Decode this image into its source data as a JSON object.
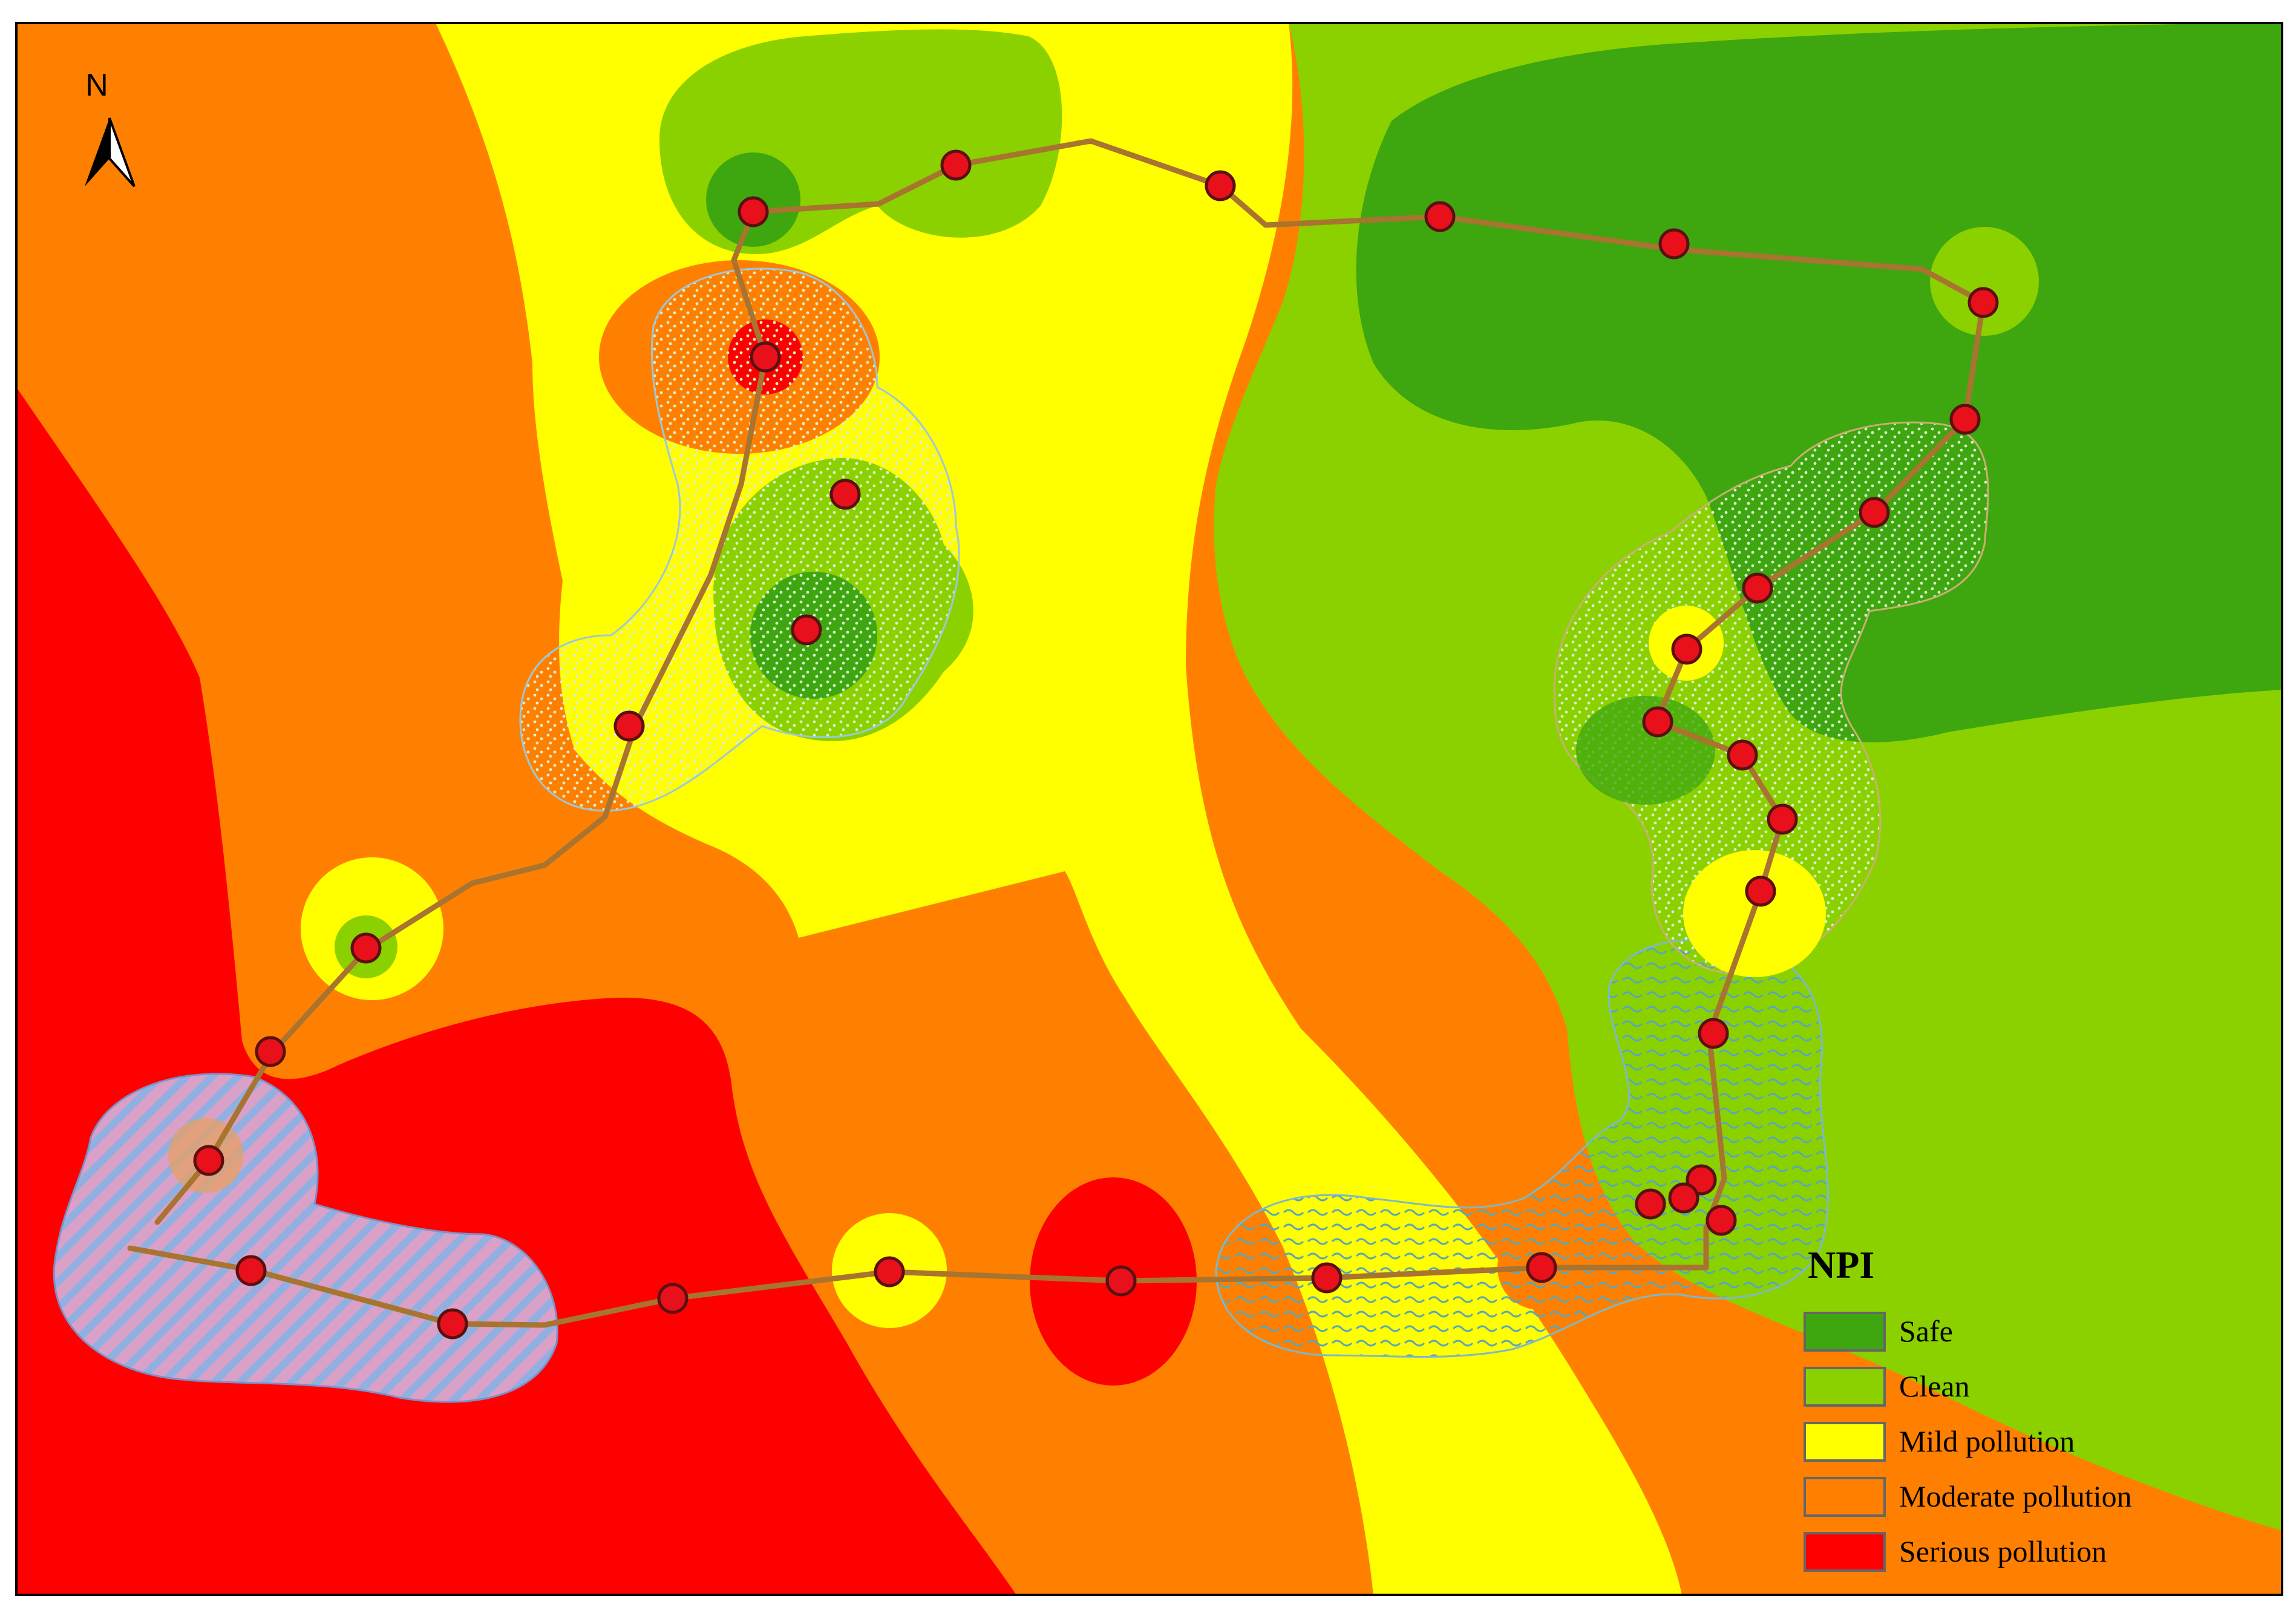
{
  "north_arrow": {
    "label": "N"
  },
  "legend": {
    "title": "NPI",
    "items": [
      {
        "label": "Safe",
        "color": "#3ea60f"
      },
      {
        "label": "Clean",
        "color": "#8bd100"
      },
      {
        "label": "Mild pollution",
        "color": "#ffff00"
      },
      {
        "label": "Moderate pollution",
        "color": "#ff8000"
      },
      {
        "label": "Serious pollution",
        "color": "#ff0000"
      }
    ]
  },
  "colors": {
    "safe": "#3ea60f",
    "clean": "#8bd100",
    "mild": "#ffff00",
    "moderate": "#ff8000",
    "serious": "#ff0000",
    "route": "#a8742f",
    "sample_point": "#e8101a",
    "sample_outline": "#5a1010",
    "frame": "#000000"
  },
  "sample_point_count": 33
}
